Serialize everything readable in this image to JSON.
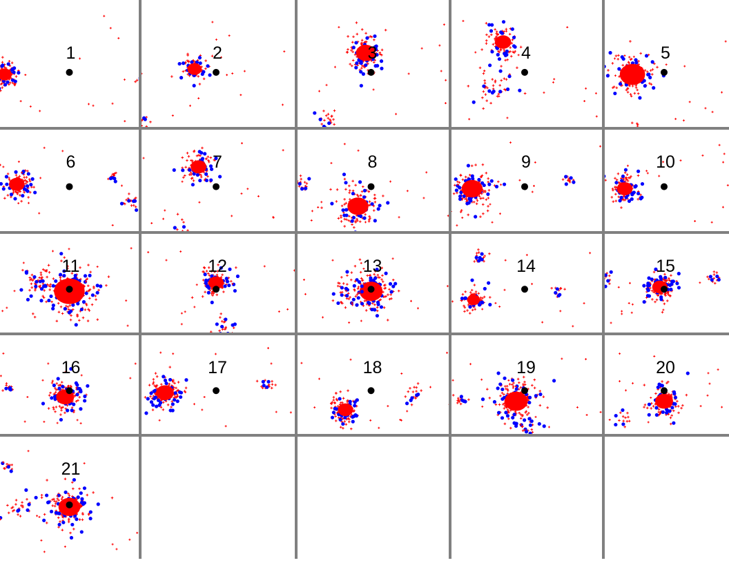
{
  "chart_data": {
    "type": "scatter",
    "panels": [
      {
        "label": "1",
        "clusters": [
          {
            "x": -1.2,
            "y": 0.0,
            "r": 0.22,
            "n": 90
          },
          {
            "x": 1.3,
            "y": -0.1,
            "r": 0.06,
            "n": 8
          }
        ]
      },
      {
        "label": "2",
        "clusters": [
          {
            "x": -0.4,
            "y": 0.1,
            "r": 0.22,
            "n": 60
          },
          {
            "x": -1.4,
            "y": -0.9,
            "r": 0.12,
            "n": 18
          }
        ]
      },
      {
        "label": "3",
        "clusters": [
          {
            "x": -0.1,
            "y": 0.4,
            "r": 0.3,
            "n": 110
          },
          {
            "x": -0.8,
            "y": -0.8,
            "r": 0.15,
            "n": 15
          }
        ]
      },
      {
        "label": "4",
        "clusters": [
          {
            "x": -0.4,
            "y": 0.6,
            "r": 0.25,
            "n": 70
          },
          {
            "x": -0.6,
            "y": -0.2,
            "r": 0.35,
            "n": 35
          }
        ]
      },
      {
        "label": "5",
        "clusters": [
          {
            "x": -0.6,
            "y": 0.0,
            "r": 0.4,
            "n": 100
          },
          {
            "x": -0.5,
            "y": -1.0,
            "r": 0.1,
            "n": 6
          }
        ]
      },
      {
        "label": "6",
        "clusters": [
          {
            "x": -1.2,
            "y": 0.1,
            "r": 0.3,
            "n": 70
          },
          {
            "x": 1.4,
            "y": -0.3,
            "r": 0.15,
            "n": 15
          },
          {
            "x": 1.0,
            "y": 0.3,
            "r": 0.1,
            "n": 10
          }
        ]
      },
      {
        "label": "7",
        "clusters": [
          {
            "x": -0.4,
            "y": 0.5,
            "r": 0.3,
            "n": 90
          },
          {
            "x": -0.8,
            "y": -1.1,
            "r": 0.3,
            "n": 20
          }
        ]
      },
      {
        "label": "8",
        "clusters": [
          {
            "x": -0.3,
            "y": -0.4,
            "r": 0.4,
            "n": 110
          },
          {
            "x": -1.6,
            "y": 0.1,
            "r": 0.15,
            "n": 15
          }
        ]
      },
      {
        "label": "9",
        "clusters": [
          {
            "x": -1.2,
            "y": 0.0,
            "r": 0.4,
            "n": 120
          },
          {
            "x": 1.0,
            "y": 0.2,
            "r": 0.1,
            "n": 10
          }
        ]
      },
      {
        "label": "10",
        "clusters": [
          {
            "x": -0.9,
            "y": 0.0,
            "r": 0.3,
            "n": 90
          },
          {
            "x": -1.6,
            "y": -0.2,
            "r": 0.08,
            "n": 6
          }
        ]
      },
      {
        "label": "11",
        "clusters": [
          {
            "x": 0.0,
            "y": 0.0,
            "r": 0.6,
            "n": 150
          },
          {
            "x": -0.8,
            "y": 0.2,
            "r": 0.3,
            "n": 25
          }
        ]
      },
      {
        "label": "12",
        "clusters": [
          {
            "x": 0.0,
            "y": 0.2,
            "r": 0.3,
            "n": 90
          },
          {
            "x": 0.2,
            "y": -0.9,
            "r": 0.25,
            "n": 20
          }
        ]
      },
      {
        "label": "13",
        "clusters": [
          {
            "x": 0.0,
            "y": 0.0,
            "r": 0.45,
            "n": 120
          },
          {
            "x": -0.6,
            "y": 0.0,
            "r": 0.3,
            "n": 25
          }
        ]
      },
      {
        "label": "14",
        "clusters": [
          {
            "x": -1.2,
            "y": -0.2,
            "r": 0.25,
            "n": 60
          },
          {
            "x": -1.1,
            "y": 0.8,
            "r": 0.15,
            "n": 15
          },
          {
            "x": 0.8,
            "y": 0.0,
            "r": 0.15,
            "n": 10
          }
        ]
      },
      {
        "label": "15",
        "clusters": [
          {
            "x": -0.1,
            "y": 0.1,
            "r": 0.3,
            "n": 110
          },
          {
            "x": -1.4,
            "y": 0.3,
            "r": 0.15,
            "n": 15
          },
          {
            "x": 1.2,
            "y": 0.3,
            "r": 0.15,
            "n": 10
          }
        ]
      },
      {
        "label": "16",
        "clusters": [
          {
            "x": -0.1,
            "y": -0.1,
            "r": 0.35,
            "n": 100
          },
          {
            "x": -1.4,
            "y": 0.1,
            "r": 0.1,
            "n": 10
          }
        ]
      },
      {
        "label": "17",
        "clusters": [
          {
            "x": -1.2,
            "y": 0.0,
            "r": 0.35,
            "n": 110
          },
          {
            "x": 1.2,
            "y": 0.2,
            "r": 0.15,
            "n": 12
          }
        ]
      },
      {
        "label": "18",
        "clusters": [
          {
            "x": -0.6,
            "y": -0.4,
            "r": 0.3,
            "n": 90
          },
          {
            "x": 1.0,
            "y": 0.0,
            "r": 0.2,
            "n": 15
          }
        ]
      },
      {
        "label": "19",
        "clusters": [
          {
            "x": -0.2,
            "y": -0.2,
            "r": 0.45,
            "n": 140
          },
          {
            "x": -1.5,
            "y": -0.2,
            "r": 0.15,
            "n": 12
          },
          {
            "x": 0.1,
            "y": -0.9,
            "r": 0.2,
            "n": 15
          }
        ]
      },
      {
        "label": "20",
        "clusters": [
          {
            "x": 0.0,
            "y": -0.2,
            "r": 0.35,
            "n": 100
          },
          {
            "x": -1.0,
            "y": -0.6,
            "r": 0.2,
            "n": 10
          }
        ]
      },
      {
        "label": "21",
        "clusters": [
          {
            "x": 0.0,
            "y": 0.0,
            "r": 0.35,
            "n": 120
          },
          {
            "x": -1.0,
            "y": 0.0,
            "r": 0.25,
            "n": 20
          },
          {
            "x": -1.2,
            "y": 0.8,
            "r": 0.1,
            "n": 8
          }
        ]
      }
    ],
    "series_colors": {
      "points_a": "#ff0000",
      "points_b": "#0000ff",
      "reference_point": "#000000"
    },
    "grid_line_color": "#808080"
  }
}
